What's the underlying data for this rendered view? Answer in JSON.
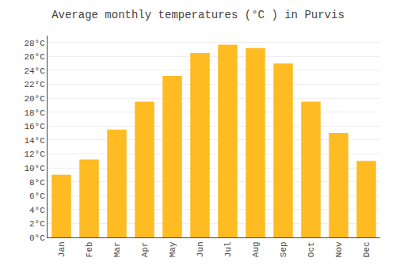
{
  "chart_data": {
    "type": "bar",
    "title": "Average monthly temperatures (°C ) in Purvis",
    "categories": [
      "Jan",
      "Feb",
      "Mar",
      "Apr",
      "May",
      "Jun",
      "Jul",
      "Aug",
      "Sep",
      "Oct",
      "Nov",
      "Dec"
    ],
    "values": [
      9.0,
      11.2,
      15.5,
      19.5,
      23.2,
      26.5,
      27.7,
      27.2,
      25.0,
      19.5,
      15.0,
      11.0
    ],
    "color": "#FFBB22",
    "ylim": [
      0,
      29
    ],
    "yticks": [
      {
        "value": 0,
        "label": "0°C"
      },
      {
        "value": 2,
        "label": "2°C"
      },
      {
        "value": 4,
        "label": "4°C"
      },
      {
        "value": 6,
        "label": "6°C"
      },
      {
        "value": 8,
        "label": "8°C"
      },
      {
        "value": 10,
        "label": "10°C"
      },
      {
        "value": 12,
        "label": "12°C"
      },
      {
        "value": 14,
        "label": "14°C"
      },
      {
        "value": 16,
        "label": "16°C"
      },
      {
        "value": 18,
        "label": "18°C"
      },
      {
        "value": 20,
        "label": "20°C"
      },
      {
        "value": 22,
        "label": "22°C"
      },
      {
        "value": 24,
        "label": "24°C"
      },
      {
        "value": 26,
        "label": "26°C"
      },
      {
        "value": 28,
        "label": "28°C"
      }
    ],
    "grid": true
  }
}
